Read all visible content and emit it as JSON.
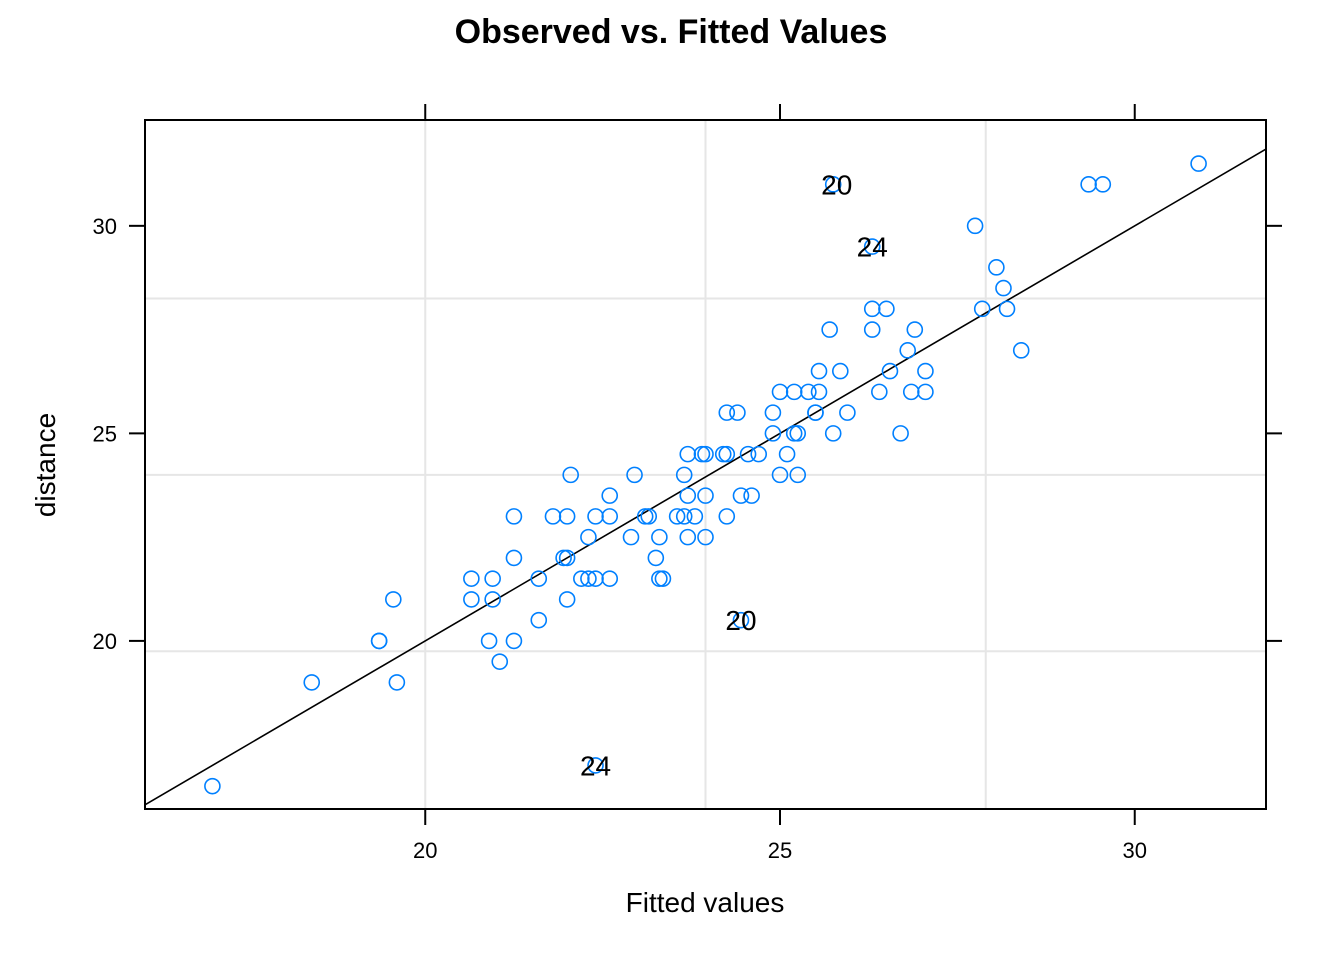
{
  "chart_data": {
    "type": "scatter",
    "title": "Observed vs. Fitted Values",
    "xlabel": "Fitted values",
    "ylabel": "distance",
    "xlim": [
      16.05,
      31.85
    ],
    "ylim": [
      15.95,
      32.55
    ],
    "x_ticks": [
      20,
      25,
      30
    ],
    "y_ticks": [
      20,
      25,
      30
    ],
    "x_tick_labels": [
      "20",
      "25",
      "30"
    ],
    "y_tick_labels": [
      "20",
      "25",
      "30"
    ],
    "grid": true,
    "reference_line": {
      "slope": 1,
      "intercept": 0
    },
    "colors": {
      "points": "#0080ff",
      "line": "#000000",
      "grid": "#e6e6e6"
    },
    "grid_x": [
      20,
      23.95,
      27.9
    ],
    "grid_y": [
      19.75,
      24.0,
      28.25
    ],
    "points": [
      [
        17.0,
        16.5
      ],
      [
        18.4,
        19.0
      ],
      [
        19.35,
        20.0
      ],
      [
        19.35,
        20.0
      ],
      [
        19.6,
        19.0
      ],
      [
        19.55,
        21.0
      ],
      [
        20.65,
        21.5
      ],
      [
        20.65,
        21.0
      ],
      [
        20.95,
        21.0
      ],
      [
        20.95,
        21.5
      ],
      [
        20.9,
        20.0
      ],
      [
        21.05,
        19.5
      ],
      [
        21.25,
        22.0
      ],
      [
        21.25,
        23.0
      ],
      [
        21.25,
        20.0
      ],
      [
        21.6,
        20.5
      ],
      [
        21.6,
        21.5
      ],
      [
        21.8,
        23.0
      ],
      [
        21.95,
        22.0
      ],
      [
        22.0,
        22.0
      ],
      [
        22.0,
        23.0
      ],
      [
        22.0,
        21.0
      ],
      [
        22.05,
        24.0
      ],
      [
        22.2,
        21.5
      ],
      [
        22.3,
        21.5
      ],
      [
        22.3,
        22.5
      ],
      [
        22.4,
        21.5
      ],
      [
        22.4,
        23.0
      ],
      [
        22.4,
        17.0
      ],
      [
        22.6,
        23.5
      ],
      [
        22.6,
        23.0
      ],
      [
        22.6,
        21.5
      ],
      [
        22.9,
        22.5
      ],
      [
        22.95,
        24.0
      ],
      [
        23.1,
        23.0
      ],
      [
        23.15,
        23.0
      ],
      [
        23.25,
        22.0
      ],
      [
        23.3,
        22.5
      ],
      [
        23.3,
        21.5
      ],
      [
        23.35,
        21.5
      ],
      [
        23.55,
        23.0
      ],
      [
        23.65,
        24.0
      ],
      [
        23.65,
        23.0
      ],
      [
        23.7,
        24.5
      ],
      [
        23.7,
        23.5
      ],
      [
        23.7,
        22.5
      ],
      [
        23.8,
        23.0
      ],
      [
        23.9,
        24.5
      ],
      [
        23.95,
        24.5
      ],
      [
        23.95,
        23.5
      ],
      [
        23.95,
        22.5
      ],
      [
        24.2,
        24.5
      ],
      [
        24.25,
        25.5
      ],
      [
        24.25,
        24.5
      ],
      [
        24.25,
        23.0
      ],
      [
        24.4,
        25.5
      ],
      [
        24.45,
        23.5
      ],
      [
        24.45,
        20.5
      ],
      [
        24.55,
        24.5
      ],
      [
        24.6,
        23.5
      ],
      [
        24.7,
        24.5
      ],
      [
        24.9,
        25.0
      ],
      [
        24.9,
        25.5
      ],
      [
        25.0,
        26.0
      ],
      [
        25.0,
        24.0
      ],
      [
        25.1,
        24.5
      ],
      [
        25.2,
        26.0
      ],
      [
        25.2,
        25.0
      ],
      [
        25.25,
        25.0
      ],
      [
        25.25,
        24.0
      ],
      [
        25.4,
        26.0
      ],
      [
        25.5,
        25.5
      ],
      [
        25.5,
        25.5
      ],
      [
        25.55,
        26.5
      ],
      [
        25.55,
        26.0
      ],
      [
        25.7,
        27.5
      ],
      [
        25.75,
        25.0
      ],
      [
        25.75,
        31.0
      ],
      [
        25.85,
        26.5
      ],
      [
        25.95,
        25.5
      ],
      [
        26.3,
        27.5
      ],
      [
        26.3,
        28.0
      ],
      [
        26.3,
        29.5
      ],
      [
        26.4,
        26.0
      ],
      [
        26.5,
        28.0
      ],
      [
        26.55,
        26.5
      ],
      [
        26.7,
        25.0
      ],
      [
        26.8,
        27.0
      ],
      [
        26.85,
        26.0
      ],
      [
        26.9,
        27.5
      ],
      [
        27.05,
        26.5
      ],
      [
        27.05,
        26.0
      ],
      [
        27.75,
        30.0
      ],
      [
        27.85,
        28.0
      ],
      [
        28.05,
        29.0
      ],
      [
        28.15,
        28.5
      ],
      [
        28.2,
        28.0
      ],
      [
        28.4,
        27.0
      ],
      [
        29.35,
        31.0
      ],
      [
        29.55,
        31.0
      ],
      [
        30.9,
        31.5
      ]
    ],
    "annotations": [
      {
        "label": "20",
        "x": 25.8,
        "y": 31.0
      },
      {
        "label": "24",
        "x": 26.3,
        "y": 29.5
      },
      {
        "label": "20",
        "x": 24.45,
        "y": 20.5
      },
      {
        "label": "24",
        "x": 22.4,
        "y": 17.0
      }
    ]
  }
}
